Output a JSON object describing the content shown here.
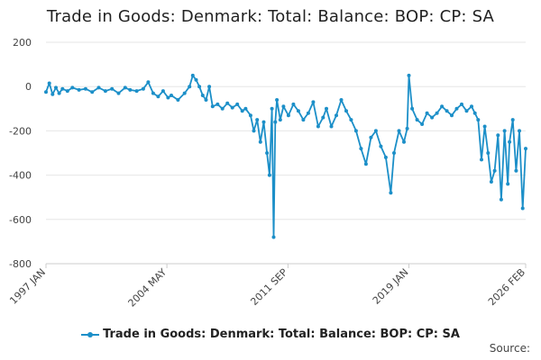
{
  "chart_data": {
    "type": "line",
    "title": "Trade in Goods: Denmark: Total: Balance: BOP: CP: SA",
    "xlabel": "",
    "ylabel": "",
    "ylim": [
      -800,
      200
    ],
    "y_ticks": [
      200,
      0,
      -200,
      -400,
      -600,
      -800
    ],
    "x_tick_labels": [
      "1997 JAN",
      "2004 MAY",
      "2011 SEP",
      "2019 JAN",
      "2026 FEB"
    ],
    "x_tick_positions": [
      1997.0,
      2004.33,
      2011.67,
      2019.0,
      2026.08
    ],
    "xlim": [
      1997.0,
      2026.08
    ],
    "grid": true,
    "legend_position": "bottom-center",
    "series": [
      {
        "name": "Trade in Goods: Denmark: Total: Balance: BOP: CP: SA",
        "color": "#1c8fc8",
        "points": [
          [
            1997.0,
            -25
          ],
          [
            1997.2,
            15
          ],
          [
            1997.4,
            -35
          ],
          [
            1997.6,
            -5
          ],
          [
            1997.8,
            -30
          ],
          [
            1998.0,
            -10
          ],
          [
            1998.3,
            -20
          ],
          [
            1998.6,
            -5
          ],
          [
            1999.0,
            -15
          ],
          [
            1999.4,
            -10
          ],
          [
            1999.8,
            -25
          ],
          [
            2000.2,
            -5
          ],
          [
            2000.6,
            -20
          ],
          [
            2001.0,
            -10
          ],
          [
            2001.4,
            -30
          ],
          [
            2001.8,
            -5
          ],
          [
            2002.1,
            -15
          ],
          [
            2002.5,
            -20
          ],
          [
            2002.9,
            -10
          ],
          [
            2003.2,
            20
          ],
          [
            2003.5,
            -30
          ],
          [
            2003.8,
            -45
          ],
          [
            2004.1,
            -20
          ],
          [
            2004.4,
            -50
          ],
          [
            2004.6,
            -40
          ],
          [
            2005.0,
            -60
          ],
          [
            2005.4,
            -30
          ],
          [
            2005.7,
            0
          ],
          [
            2005.9,
            50
          ],
          [
            2006.1,
            30
          ],
          [
            2006.3,
            0
          ],
          [
            2006.5,
            -40
          ],
          [
            2006.7,
            -60
          ],
          [
            2006.9,
            0
          ],
          [
            2007.1,
            -90
          ],
          [
            2007.4,
            -80
          ],
          [
            2007.7,
            -100
          ],
          [
            2008.0,
            -75
          ],
          [
            2008.3,
            -95
          ],
          [
            2008.6,
            -80
          ],
          [
            2008.9,
            -110
          ],
          [
            2009.1,
            -100
          ],
          [
            2009.4,
            -130
          ],
          [
            2009.6,
            -200
          ],
          [
            2009.8,
            -150
          ],
          [
            2010.0,
            -250
          ],
          [
            2010.2,
            -160
          ],
          [
            2010.4,
            -300
          ],
          [
            2010.55,
            -400
          ],
          [
            2010.7,
            -100
          ],
          [
            2010.8,
            -680
          ],
          [
            2010.9,
            -160
          ],
          [
            2011.0,
            -60
          ],
          [
            2011.2,
            -150
          ],
          [
            2011.4,
            -90
          ],
          [
            2011.7,
            -130
          ],
          [
            2012.0,
            -80
          ],
          [
            2012.3,
            -110
          ],
          [
            2012.6,
            -150
          ],
          [
            2012.9,
            -120
          ],
          [
            2013.2,
            -70
          ],
          [
            2013.5,
            -180
          ],
          [
            2013.8,
            -140
          ],
          [
            2014.0,
            -100
          ],
          [
            2014.3,
            -180
          ],
          [
            2014.6,
            -130
          ],
          [
            2014.9,
            -60
          ],
          [
            2015.2,
            -110
          ],
          [
            2015.5,
            -150
          ],
          [
            2015.8,
            -200
          ],
          [
            2016.1,
            -280
          ],
          [
            2016.4,
            -350
          ],
          [
            2016.7,
            -230
          ],
          [
            2017.0,
            -200
          ],
          [
            2017.3,
            -270
          ],
          [
            2017.6,
            -320
          ],
          [
            2017.9,
            -480
          ],
          [
            2018.1,
            -300
          ],
          [
            2018.4,
            -200
          ],
          [
            2018.7,
            -250
          ],
          [
            2018.9,
            -190
          ],
          [
            2019.0,
            50
          ],
          [
            2019.2,
            -100
          ],
          [
            2019.5,
            -150
          ],
          [
            2019.8,
            -170
          ],
          [
            2020.1,
            -120
          ],
          [
            2020.4,
            -140
          ],
          [
            2020.7,
            -120
          ],
          [
            2021.0,
            -90
          ],
          [
            2021.3,
            -110
          ],
          [
            2021.6,
            -130
          ],
          [
            2021.9,
            -100
          ],
          [
            2022.2,
            -80
          ],
          [
            2022.5,
            -110
          ],
          [
            2022.8,
            -90
          ],
          [
            2023.0,
            -120
          ],
          [
            2023.2,
            -150
          ],
          [
            2023.4,
            -330
          ],
          [
            2023.6,
            -180
          ],
          [
            2023.8,
            -300
          ],
          [
            2024.0,
            -430
          ],
          [
            2024.2,
            -380
          ],
          [
            2024.4,
            -220
          ],
          [
            2024.6,
            -510
          ],
          [
            2024.8,
            -200
          ],
          [
            2025.0,
            -440
          ],
          [
            2025.1,
            -250
          ],
          [
            2025.3,
            -150
          ],
          [
            2025.5,
            -380
          ],
          [
            2025.7,
            -200
          ],
          [
            2025.9,
            -550
          ],
          [
            2026.08,
            -280
          ]
        ]
      }
    ]
  },
  "legend": {
    "label": "Trade in Goods: Denmark: Total: Balance: BOP: CP: SA"
  },
  "footer": {
    "source_label": "Source:"
  },
  "colors": {
    "series": "#1c8fc8",
    "grid": "#e6e6e6",
    "axis": "#cccccc"
  }
}
